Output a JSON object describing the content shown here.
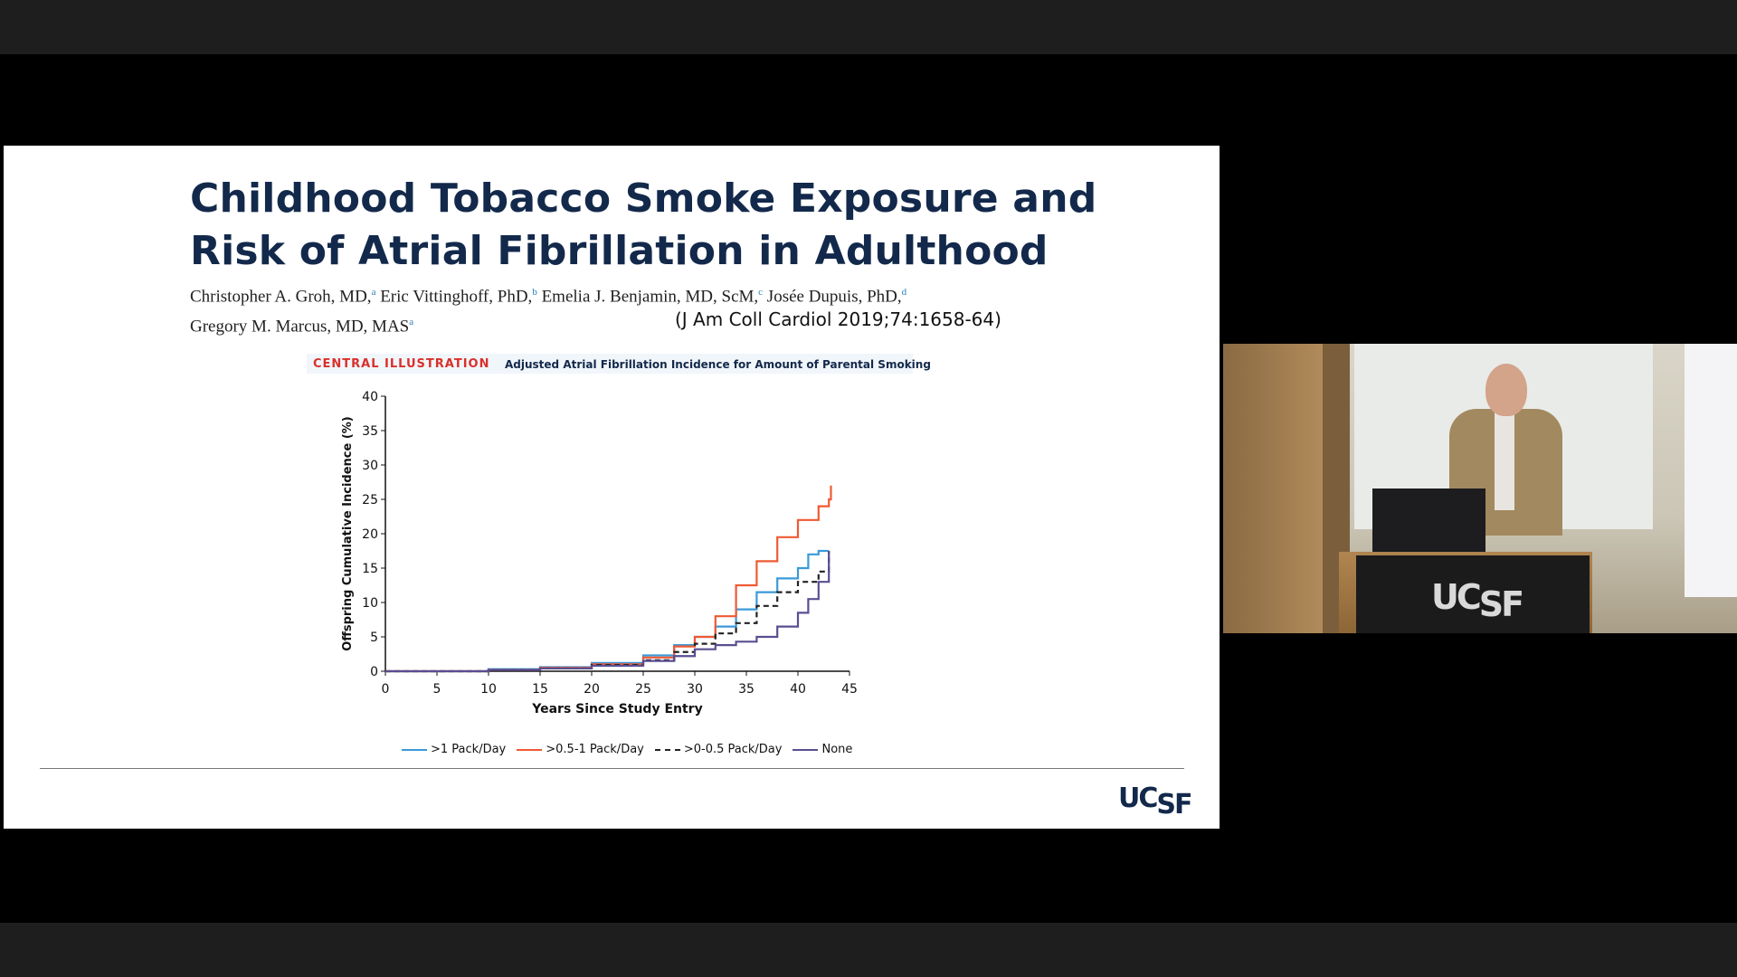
{
  "slide": {
    "title_line1": "Childhood Tobacco Smoke Exposure and",
    "title_line2": "Risk of Atrial Fibrillation in Adulthood",
    "authors": [
      {
        "name": "Christopher A. Groh, MD,",
        "sup": "a"
      },
      {
        "name": "Eric Vittinghoff, PhD,",
        "sup": "b"
      },
      {
        "name": "Emelia J. Benjamin, MD, ScM,",
        "sup": "c"
      },
      {
        "name": "Josée Dupuis, PhD,",
        "sup": "d"
      },
      {
        "name": "Gregory M. Marcus, MD, MAS",
        "sup": "a"
      }
    ],
    "citation": "(J Am Coll Cardiol 2019;74:1658-64)",
    "central_illustration_label": "CENTRAL ILLUSTRATION",
    "central_illustration_title": "Adjusted Atrial Fibrillation Incidence for Amount of Parental Smoking",
    "logo_text": "UC",
    "logo_text2": "SF"
  },
  "camera": {
    "podium_logo": "UC",
    "podium_logo2": "SF"
  },
  "colors": {
    "title": "#13294b",
    "accent_red": "#d9302b",
    "series_gt1": "#3a9ad9",
    "series_05_1": "#ef5a33",
    "series_0_05": "#222222",
    "series_none": "#5a4e91"
  },
  "chart_data": {
    "type": "line",
    "title": "",
    "xlabel": "Years Since Study Entry",
    "ylabel": "Offspring Cumulative Incidence (%)",
    "xlim": [
      0,
      45
    ],
    "ylim": [
      0,
      40
    ],
    "xticks": [
      0,
      5,
      10,
      15,
      20,
      25,
      30,
      35,
      40,
      45
    ],
    "yticks": [
      0,
      5,
      10,
      15,
      20,
      25,
      30,
      35,
      40
    ],
    "legend_position": "bottom",
    "series": [
      {
        "name": ">1 Pack/Day",
        "color": "#3a9ad9",
        "dash": "solid",
        "x": [
          0,
          10,
          15,
          20,
          25,
          28,
          30,
          32,
          34,
          36,
          38,
          40,
          41,
          42,
          43
        ],
        "y": [
          0,
          0.3,
          0.6,
          1.2,
          2.3,
          3.8,
          5.0,
          6.5,
          9.0,
          11.5,
          13.5,
          15.0,
          17.0,
          17.5,
          17.5
        ]
      },
      {
        "name": ">0.5-1 Pack/Day",
        "color": "#ef5a33",
        "dash": "solid",
        "x": [
          0,
          10,
          15,
          20,
          25,
          28,
          30,
          32,
          34,
          36,
          38,
          40,
          42,
          43,
          43.2
        ],
        "y": [
          0,
          0.2,
          0.5,
          1.0,
          2.0,
          3.6,
          5.0,
          8.0,
          12.5,
          16.0,
          19.5,
          22.0,
          24.0,
          25.0,
          27.0
        ]
      },
      {
        "name": ">0-0.5 Pack/Day",
        "color": "#222222",
        "dash": "dashed",
        "x": [
          0,
          10,
          15,
          20,
          25,
          28,
          30,
          32,
          34,
          36,
          38,
          40,
          42,
          43
        ],
        "y": [
          0,
          0.2,
          0.4,
          0.9,
          1.6,
          2.8,
          4.0,
          5.5,
          7.0,
          9.5,
          11.5,
          13.0,
          14.5,
          17.5
        ]
      },
      {
        "name": "None",
        "color": "#5a4e91",
        "dash": "solid",
        "x": [
          0,
          10,
          15,
          20,
          25,
          28,
          30,
          32,
          34,
          36,
          38,
          40,
          41,
          42,
          43
        ],
        "y": [
          0,
          0.2,
          0.4,
          0.8,
          1.5,
          2.2,
          3.2,
          3.8,
          4.3,
          5.0,
          6.5,
          8.5,
          10.5,
          13.0,
          17.5
        ]
      }
    ]
  }
}
